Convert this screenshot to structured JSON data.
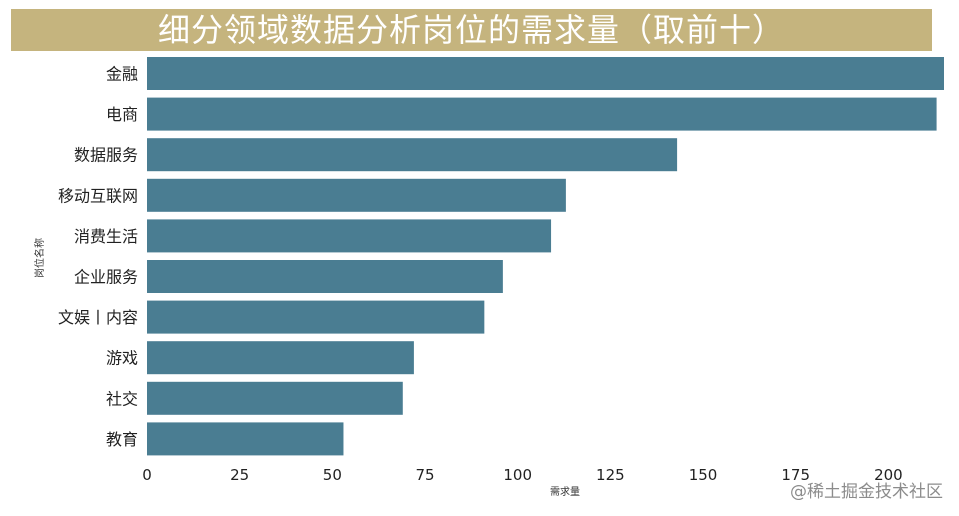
{
  "chart_data": {
    "type": "bar",
    "orientation": "horizontal",
    "title": "细分领域数据分析岗位的需求量（取前十）",
    "xlabel": "需求量",
    "ylabel": "岗位名称",
    "categories": [
      "金融",
      "电商",
      "数据服务",
      "移动互联网",
      "消费生活",
      "企业服务",
      "文娱丨内容",
      "游戏",
      "社交",
      "教育"
    ],
    "values": [
      215,
      213,
      143,
      113,
      109,
      96,
      91,
      72,
      69,
      53
    ],
    "xlim": [
      0,
      215
    ],
    "xticks": [
      0,
      25,
      50,
      75,
      100,
      125,
      150,
      175,
      200
    ],
    "grid": false,
    "bar_color": "#4a7d92",
    "title_bg_color": "#c5b47e"
  },
  "watermark": "@稀土掘金技术社区"
}
